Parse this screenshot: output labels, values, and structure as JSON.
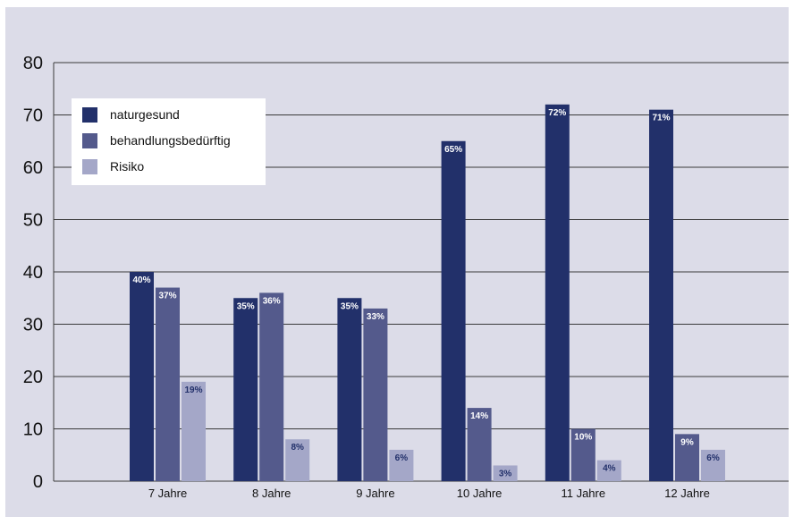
{
  "chart_data": {
    "type": "bar",
    "categories": [
      "7 Jahre",
      "8 Jahre",
      "9 Jahre",
      "10 Jahre",
      "11 Jahre",
      "12 Jahre"
    ],
    "series": [
      {
        "name": "naturgesund",
        "values": [
          40,
          35,
          35,
          65,
          72,
          71
        ],
        "labels": [
          "40%",
          "35%",
          "35%",
          "65%",
          "72%",
          "71%"
        ],
        "color": "#22306a"
      },
      {
        "name": "behandlungsbedürftig",
        "values": [
          37,
          36,
          33,
          14,
          10,
          9
        ],
        "labels": [
          "37%",
          "36%",
          "33%",
          "14%",
          "10%",
          "9%"
        ],
        "color": "#545a8c"
      },
      {
        "name": "Risiko",
        "values": [
          19,
          8,
          6,
          3,
          4,
          6
        ],
        "labels": [
          "19%",
          "8%",
          "6%",
          "3%",
          "4%",
          "6%"
        ],
        "color": "#a4a7c8"
      }
    ],
    "ylim": [
      0,
      80
    ],
    "yticks": [
      0,
      10,
      20,
      30,
      40,
      50,
      60,
      70,
      80
    ],
    "grid": true,
    "legend_position": "top-left",
    "background": "#dcdce8",
    "label_colors": {
      "dark": "#ffffff",
      "light": "#22306a"
    }
  }
}
